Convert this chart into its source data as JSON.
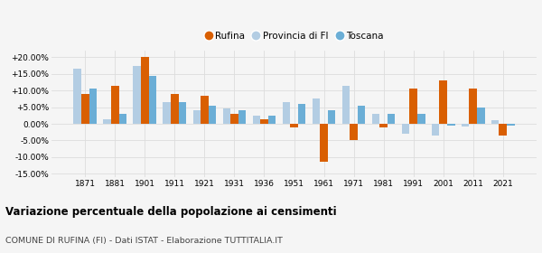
{
  "years": [
    1871,
    1881,
    1901,
    1911,
    1921,
    1931,
    1936,
    1951,
    1961,
    1971,
    1981,
    1991,
    2001,
    2011,
    2021
  ],
  "rufina": [
    9.0,
    11.5,
    20.0,
    9.0,
    8.5,
    3.0,
    1.5,
    -1.0,
    -11.5,
    -5.0,
    -1.0,
    10.5,
    13.0,
    10.5,
    -3.5
  ],
  "provincia_fi": [
    16.5,
    1.5,
    17.5,
    6.5,
    4.0,
    4.5,
    2.5,
    6.5,
    7.5,
    11.5,
    3.0,
    -3.0,
    -3.5,
    -0.8,
    1.0
  ],
  "toscana": [
    10.5,
    3.0,
    14.5,
    6.5,
    5.5,
    4.0,
    2.5,
    6.0,
    4.0,
    5.5,
    3.0,
    3.0,
    -0.5,
    5.0,
    -0.5
  ],
  "color_rufina": "#d95f02",
  "color_provincia": "#b3cde3",
  "color_toscana": "#6baed6",
  "title": "Variazione percentuale della popolazione ai censimenti",
  "subtitle": "COMUNE DI RUFINA (FI) - Dati ISTAT - Elaborazione TUTTITALIA.IT",
  "ylim": [
    -16,
    22
  ],
  "yticks": [
    -15,
    -10,
    -5,
    0,
    5,
    10,
    15,
    20
  ],
  "ytick_labels": [
    "-15.00%",
    "-10.00%",
    "-5.00%",
    "0.00%",
    "+5.00%",
    "+10.00%",
    "+15.00%",
    "+20.00%"
  ],
  "bg_color": "#f5f5f5",
  "grid_color": "#dddddd"
}
